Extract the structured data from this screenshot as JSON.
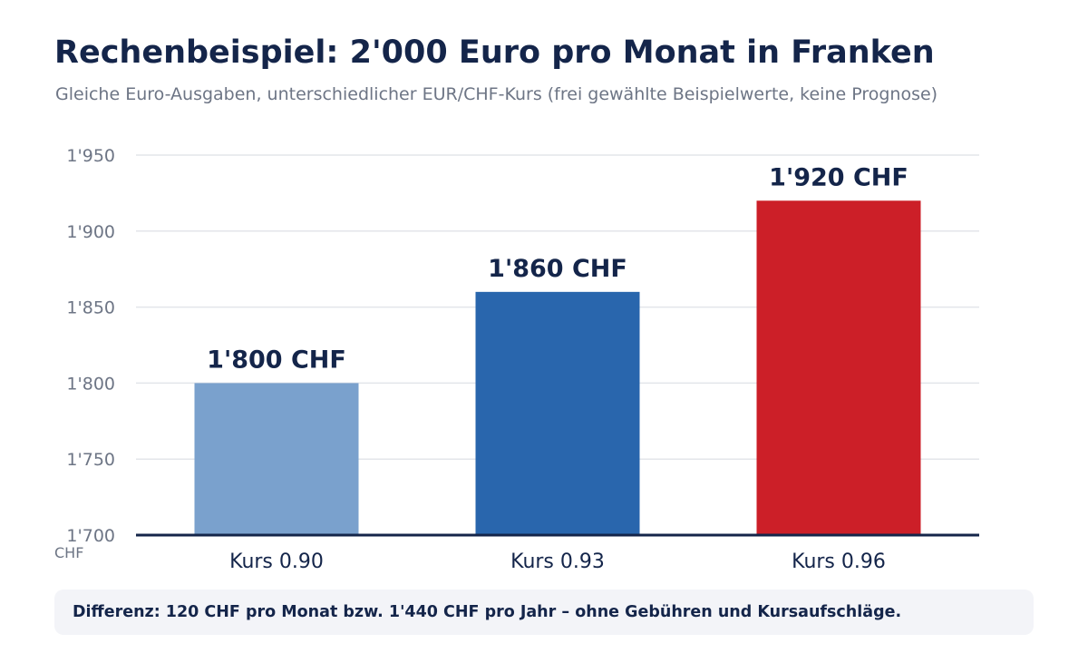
{
  "chart_data": {
    "type": "bar",
    "title": "Rechenbeispiel: 2'000 Euro pro Monat in Franken",
    "subtitle": "Gleiche Euro-Ausgaben, unterschiedlicher EUR/CHF-Kurs (frei gewählte Beispielwerte, keine Prognose)",
    "categories": [
      "Kurs 0.90",
      "Kurs 0.93",
      "Kurs 0.96"
    ],
    "values": [
      1800,
      1860,
      1920
    ],
    "value_labels": [
      "1'800 CHF",
      "1'860 CHF",
      "1'920 CHF"
    ],
    "bar_colors": [
      "#7aa1cd",
      "#2966ad",
      "#cc1f28"
    ],
    "ylabel": "CHF",
    "ylim": [
      1700,
      1950
    ],
    "yticks": [
      1700,
      1750,
      1800,
      1850,
      1900,
      1950
    ],
    "ytick_labels": [
      "1'700",
      "1'750",
      "1'800",
      "1'850",
      "1'900",
      "1'950"
    ],
    "grid": true,
    "legend": "none"
  },
  "note": "Differenz: 120 CHF pro Monat bzw. 1'440 CHF pro Jahr – ohne Gebühren und Kursaufschläge."
}
